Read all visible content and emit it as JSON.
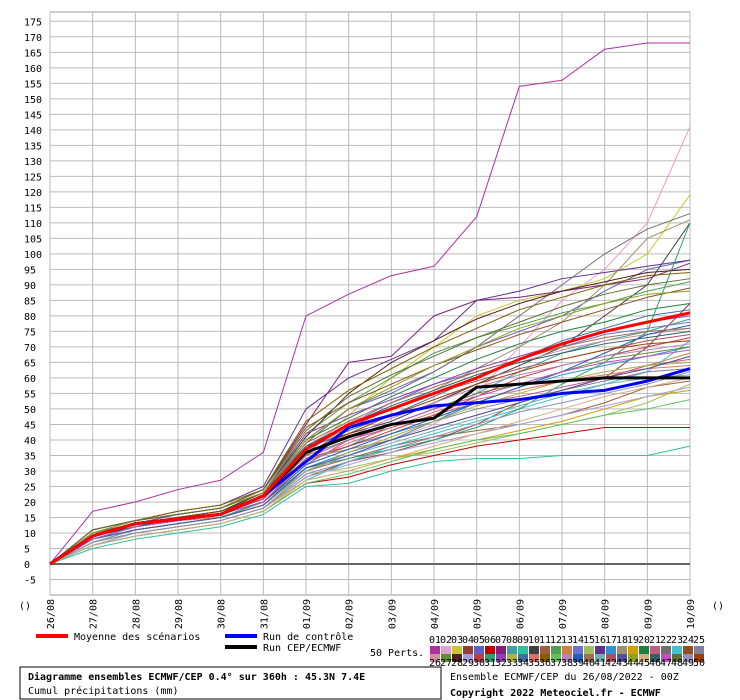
{
  "chart_data": {
    "type": "line",
    "title": "Diagramme ensembles ECMWF/CEP 0.4° sur 360h : 45.3N 7.4E",
    "subtitle": "Cumul précipitations (mm)",
    "run_info": "Ensemble ECMWF/CEP du 26/08/2022 - 00Z",
    "copyright": "Copyright 2022 Meteociel.fr - ECMWF",
    "x_axis_label_left": "()",
    "x_axis_label_right": "()",
    "members_label": "50 Perts.",
    "grid": true,
    "categories": [
      "26/08",
      "27/08",
      "28/08",
      "29/08",
      "30/08",
      "31/08",
      "01/09",
      "02/09",
      "03/09",
      "04/09",
      "05/09",
      "06/09",
      "07/09",
      "08/09",
      "09/09",
      "10/09"
    ],
    "ylim": [
      -10,
      178
    ],
    "yticks": [
      -5,
      0,
      5,
      10,
      15,
      20,
      25,
      30,
      35,
      40,
      45,
      50,
      55,
      60,
      65,
      70,
      75,
      80,
      85,
      90,
      95,
      100,
      105,
      110,
      115,
      120,
      125,
      130,
      135,
      140,
      145,
      150,
      155,
      160,
      165,
      170,
      175
    ],
    "series": [
      {
        "name": "Run de contrôle",
        "color": "#0000ff",
        "values": [
          0,
          9,
          13,
          14.5,
          16,
          22,
          33,
          44,
          48,
          51,
          52,
          53,
          55,
          56,
          59,
          63
        ]
      },
      {
        "name": "Run CEP/ECMWF",
        "color": "#000000",
        "values": [
          0,
          9,
          13,
          14.5,
          16,
          22,
          36,
          41,
          45,
          47,
          57,
          58,
          59,
          60,
          60,
          60
        ]
      },
      {
        "name": "Moyenne des scénarios",
        "color": "#ff0000",
        "values": [
          0,
          9,
          13,
          14.5,
          16,
          22,
          37,
          45,
          50,
          55,
          60,
          66,
          71,
          75,
          78,
          81
        ]
      }
    ],
    "members": [
      {
        "name": "01",
        "color": "#b0309c",
        "values": [
          0,
          17,
          20,
          24,
          27,
          36,
          80,
          87,
          93,
          96,
          112,
          154,
          156,
          166,
          168,
          168
        ]
      },
      {
        "name": "02",
        "color": "#e0a0d0",
        "values": [
          0,
          8,
          11,
          13,
          15,
          20,
          30,
          35,
          40,
          45,
          55,
          70,
          85,
          95,
          110,
          141
        ]
      },
      {
        "name": "03",
        "color": "#c8c830",
        "values": [
          0,
          9,
          12,
          14,
          16,
          21,
          35,
          48,
          60,
          70,
          80,
          85,
          88,
          92,
          100,
          119
        ]
      },
      {
        "name": "04",
        "color": "#904030",
        "values": [
          0,
          7,
          10,
          12,
          14,
          18,
          28,
          33,
          36,
          40,
          45,
          52,
          56,
          60,
          70,
          84
        ]
      },
      {
        "name": "05",
        "color": "#6060c0",
        "values": [
          0,
          10,
          13,
          15,
          17,
          22,
          40,
          50,
          55,
          62,
          70,
          75,
          80,
          88,
          95,
          98
        ]
      },
      {
        "name": "06",
        "color": "#c00000",
        "values": [
          0,
          6,
          9,
          11,
          13,
          17,
          26,
          28,
          32,
          35,
          38,
          40,
          42,
          44,
          44,
          44
        ]
      },
      {
        "name": "07",
        "color": "#802080",
        "values": [
          0,
          11,
          14,
          16,
          18,
          24,
          45,
          65,
          67,
          80,
          85,
          86,
          88,
          90,
          92,
          97
        ]
      },
      {
        "name": "08",
        "color": "#40a0a0",
        "values": [
          0,
          8,
          12,
          14,
          16,
          20,
          33,
          38,
          45,
          50,
          55,
          62,
          68,
          72,
          75,
          79
        ]
      },
      {
        "name": "09",
        "color": "#30c0a0",
        "values": [
          0,
          5,
          8,
          10,
          12,
          16,
          25,
          26,
          30,
          33,
          34,
          34,
          35,
          35,
          35,
          38
        ]
      },
      {
        "name": "10",
        "color": "#404040",
        "values": [
          0,
          9,
          12,
          15,
          17,
          23,
          38,
          42,
          46,
          52,
          58,
          64,
          70,
          80,
          90,
          110
        ]
      },
      {
        "name": "11",
        "color": "#a06040",
        "values": [
          0,
          7,
          11,
          13,
          15,
          19,
          30,
          34,
          38,
          41,
          43,
          45,
          48,
          52,
          57,
          59
        ]
      },
      {
        "name": "12",
        "color": "#50a050",
        "values": [
          0,
          10,
          13,
          16,
          18,
          24,
          42,
          52,
          60,
          68,
          73,
          77,
          81,
          84,
          88,
          91
        ]
      },
      {
        "name": "13",
        "color": "#d08040",
        "values": [
          0,
          8,
          12,
          14,
          15,
          20,
          34,
          37,
          40,
          44,
          48,
          52,
          56,
          60,
          64,
          68
        ]
      },
      {
        "name": "14",
        "color": "#7070d0",
        "values": [
          0,
          9,
          13,
          15,
          17,
          22,
          36,
          45,
          52,
          58,
          62,
          66,
          70,
          74,
          76,
          78
        ]
      },
      {
        "name": "15",
        "color": "#a0c060",
        "values": [
          0,
          6,
          10,
          12,
          14,
          18,
          29,
          31,
          34,
          36,
          39,
          42,
          45,
          48,
          52,
          58
        ]
      },
      {
        "name": "16",
        "color": "#603090",
        "values": [
          0,
          11,
          14,
          17,
          19,
          25,
          50,
          60,
          66,
          72,
          85,
          88,
          92,
          94,
          96,
          98
        ]
      },
      {
        "name": "17",
        "color": "#3090d0",
        "values": [
          0,
          8,
          11,
          13,
          15,
          19,
          31,
          36,
          40,
          46,
          52,
          57,
          61,
          64,
          67,
          70
        ]
      },
      {
        "name": "18",
        "color": "#a09070",
        "values": [
          0,
          9,
          12,
          14,
          16,
          21,
          37,
          44,
          50,
          56,
          63,
          70,
          78,
          90,
          105,
          111
        ]
      },
      {
        "name": "19",
        "color": "#d0a000",
        "values": [
          0,
          7,
          10,
          12,
          14,
          18,
          27,
          30,
          34,
          37,
          40,
          43,
          46,
          50,
          54,
          56
        ]
      },
      {
        "name": "20",
        "color": "#208040",
        "values": [
          0,
          10,
          14,
          16,
          18,
          23,
          40,
          47,
          54,
          60,
          66,
          71,
          75,
          78,
          82,
          84
        ]
      },
      {
        "name": "21",
        "color": "#c06080",
        "values": [
          0,
          8,
          12,
          14,
          16,
          20,
          32,
          40,
          44,
          48,
          52,
          54,
          57,
          60,
          64,
          66
        ]
      },
      {
        "name": "22",
        "color": "#707070",
        "values": [
          0,
          9,
          12,
          15,
          17,
          22,
          39,
          50,
          56,
          62,
          70,
          80,
          90,
          100,
          108,
          113
        ]
      },
      {
        "name": "23",
        "color": "#40c0d0",
        "values": [
          0,
          6,
          9,
          11,
          13,
          17,
          27,
          33,
          38,
          42,
          46,
          50,
          54,
          58,
          62,
          72
        ]
      },
      {
        "name": "24",
        "color": "#905020",
        "values": [
          0,
          11,
          14,
          16,
          18,
          24,
          44,
          52,
          58,
          64,
          69,
          74,
          78,
          82,
          86,
          89
        ]
      },
      {
        "name": "25",
        "color": "#8080a0",
        "values": [
          0,
          7,
          11,
          13,
          15,
          20,
          33,
          38,
          42,
          46,
          50,
          53,
          56,
          59,
          62,
          63
        ]
      },
      {
        "name": "26",
        "color": "#d090a0",
        "values": [
          0,
          9,
          13,
          15,
          17,
          22,
          38,
          46,
          50,
          56,
          61,
          65,
          69,
          72,
          74,
          76
        ]
      },
      {
        "name": "27",
        "color": "#609030",
        "values": [
          0,
          8,
          12,
          14,
          16,
          21,
          35,
          40,
          45,
          50,
          55,
          58,
          62,
          66,
          68,
          70
        ]
      },
      {
        "name": "28",
        "color": "#502020",
        "values": [
          0,
          10,
          13,
          15,
          17,
          23,
          41,
          55,
          65,
          72,
          79,
          84,
          88,
          91,
          94,
          95
        ]
      },
      {
        "name": "29",
        "color": "#a0a0e0",
        "values": [
          0,
          6,
          10,
          12,
          14,
          18,
          28,
          32,
          36,
          39,
          42,
          45,
          48,
          51,
          54,
          57
        ]
      },
      {
        "name": "30",
        "color": "#c04040",
        "values": [
          0,
          9,
          12,
          14,
          16,
          21,
          34,
          38,
          43,
          48,
          54,
          60,
          64,
          67,
          70,
          73
        ]
      },
      {
        "name": "31",
        "color": "#30a070",
        "values": [
          0,
          8,
          11,
          13,
          15,
          20,
          31,
          34,
          37,
          40,
          44,
          50,
          58,
          65,
          75,
          110
        ]
      },
      {
        "name": "32",
        "color": "#9040b0",
        "values": [
          0,
          10,
          13,
          16,
          18,
          23,
          42,
          48,
          53,
          58,
          63,
          67,
          71,
          75,
          78,
          80
        ]
      },
      {
        "name": "33",
        "color": "#b0b040",
        "values": [
          0,
          7,
          10,
          12,
          14,
          18,
          30,
          36,
          41,
          46,
          51,
          55,
          59,
          62,
          64,
          65
        ]
      },
      {
        "name": "34",
        "color": "#4070a0",
        "values": [
          0,
          9,
          13,
          15,
          17,
          22,
          37,
          43,
          48,
          54,
          60,
          66,
          72,
          76,
          80,
          82
        ]
      },
      {
        "name": "35",
        "color": "#e07070",
        "values": [
          0,
          8,
          12,
          14,
          16,
          20,
          33,
          39,
          44,
          49,
          53,
          56,
          59,
          61,
          63,
          64
        ]
      },
      {
        "name": "36",
        "color": "#806000",
        "values": [
          0,
          11,
          14,
          17,
          19,
          24,
          46,
          56,
          63,
          70,
          76,
          82,
          86,
          90,
          93,
          94
        ]
      },
      {
        "name": "37",
        "color": "#60c060",
        "values": [
          0,
          6,
          9,
          11,
          13,
          17,
          26,
          29,
          33,
          37,
          40,
          42,
          45,
          48,
          50,
          53
        ]
      },
      {
        "name": "38",
        "color": "#c080c0",
        "values": [
          0,
          9,
          12,
          14,
          16,
          21,
          36,
          41,
          47,
          52,
          57,
          61,
          64,
          67,
          69,
          71
        ]
      },
      {
        "name": "39",
        "color": "#2060c0",
        "values": [
          0,
          8,
          12,
          14,
          16,
          20,
          32,
          37,
          42,
          47,
          52,
          57,
          62,
          68,
          74,
          77
        ]
      },
      {
        "name": "40",
        "color": "#a07050",
        "values": [
          0,
          10,
          13,
          15,
          17,
          22,
          39,
          46,
          52,
          57,
          62,
          66,
          70,
          73,
          75,
          76
        ]
      },
      {
        "name": "41",
        "color": "#70b0b0",
        "values": [
          0,
          7,
          11,
          13,
          15,
          19,
          30,
          35,
          39,
          43,
          47,
          51,
          55,
          58,
          60,
          61
        ]
      },
      {
        "name": "42",
        "color": "#b05060",
        "values": [
          0,
          9,
          12,
          14,
          16,
          21,
          35,
          44,
          50,
          55,
          59,
          63,
          66,
          69,
          72,
          74
        ]
      },
      {
        "name": "43",
        "color": "#5050a0",
        "values": [
          0,
          8,
          11,
          13,
          15,
          19,
          31,
          35,
          40,
          44,
          48,
          52,
          56,
          60,
          63,
          67
        ]
      },
      {
        "name": "44",
        "color": "#90a020",
        "values": [
          0,
          10,
          14,
          16,
          18,
          23,
          40,
          50,
          57,
          64,
          70,
          76,
          80,
          84,
          87,
          88
        ]
      },
      {
        "name": "45",
        "color": "#d0b080",
        "values": [
          0,
          6,
          9,
          11,
          13,
          17,
          27,
          30,
          34,
          38,
          42,
          46,
          50,
          54,
          57,
          60
        ]
      },
      {
        "name": "46",
        "color": "#306060",
        "values": [
          0,
          9,
          12,
          15,
          17,
          22,
          38,
          45,
          51,
          56,
          61,
          65,
          68,
          71,
          73,
          75
        ]
      },
      {
        "name": "47",
        "color": "#c050c0",
        "values": [
          0,
          8,
          12,
          14,
          16,
          20,
          34,
          40,
          45,
          50,
          54,
          58,
          62,
          65,
          67,
          69
        ]
      },
      {
        "name": "48",
        "color": "#607030",
        "values": [
          0,
          11,
          14,
          16,
          18,
          24,
          43,
          54,
          61,
          67,
          73,
          78,
          83,
          87,
          90,
          92
        ]
      },
      {
        "name": "49",
        "color": "#9090c0",
        "values": [
          0,
          7,
          10,
          12,
          14,
          18,
          29,
          33,
          37,
          41,
          45,
          49,
          52,
          55,
          58,
          62
        ]
      },
      {
        "name": "50",
        "color": "#a04000",
        "values": [
          0,
          9,
          13,
          15,
          17,
          22,
          36,
          42,
          48,
          53,
          58,
          62,
          66,
          69,
          71,
          72
        ]
      }
    ]
  }
}
